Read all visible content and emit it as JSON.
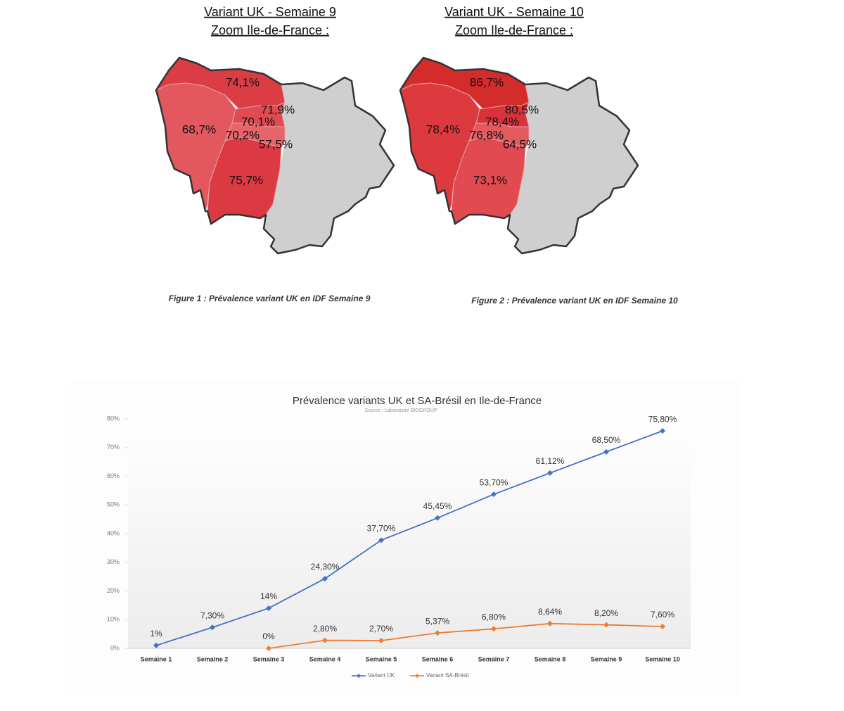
{
  "maps": [
    {
      "title": "Variant UK - Semaine 9",
      "subtitle": "Zoom Ile-de-France :",
      "regions": [
        "74,1%",
        "71,9%",
        "70,1%",
        "68,7%",
        "70,2%",
        "57,5%",
        "75,7%"
      ],
      "caption": "Figure 1 : Prévalence variant UK en IDF Semaine 9"
    },
    {
      "title": "Variant UK - Semaine 10",
      "subtitle": "Zoom Ile-de-France :",
      "regions": [
        "86,7%",
        "80,5%",
        "78,4%",
        "78,4%",
        "76,8%",
        "64,5%",
        "73,1%"
      ],
      "caption": "Figure 2 : Prévalence variant UK en IDF Semaine 10"
    }
  ],
  "chart_data": {
    "type": "line",
    "title": "Prévalence variants UK et SA-Brésil en Ile-de-France",
    "subtitle": "Source : Laboratoire BIOGROUP",
    "categories": [
      "Semaine 1",
      "Semaine 2",
      "Semaine 3",
      "Semaine 4",
      "Semaine 5",
      "Semaine 6",
      "Semaine 7",
      "Semaine 8",
      "Semaine 9",
      "Semaine 10"
    ],
    "series": [
      {
        "name": "Variant UK",
        "color": "#4472c4",
        "values": [
          1,
          7.3,
          14,
          24.3,
          37.7,
          45.45,
          53.7,
          61.12,
          68.5,
          75.8
        ],
        "value_labels": [
          "1%",
          "7,30%",
          "14%",
          "24,30%",
          "37,70%",
          "45,45%",
          "53,70%",
          "61,12%",
          "68,50%",
          "75,80%"
        ]
      },
      {
        "name": "Variant SA-Brésil",
        "color": "#ed7d31",
        "values": [
          null,
          null,
          0,
          2.8,
          2.7,
          5.37,
          6.8,
          8.64,
          8.2,
          7.6
        ],
        "value_labels": [
          null,
          null,
          "0%",
          "2,80%",
          "2,70%",
          "5,37%",
          "6,80%",
          "8,64%",
          "8,20%",
          "7,60%"
        ]
      }
    ],
    "ylim": [
      0,
      80
    ],
    "yticks": [
      {
        "value": 0,
        "label": "0%"
      },
      {
        "value": 10,
        "label": "10%"
      },
      {
        "value": 20,
        "label": "20%"
      },
      {
        "value": 30,
        "label": "30%"
      },
      {
        "value": 40,
        "label": "40%"
      },
      {
        "value": 50,
        "label": "50%"
      },
      {
        "value": 60,
        "label": "60%"
      },
      {
        "value": 70,
        "label": "70%"
      },
      {
        "value": 80,
        "label": "80%"
      }
    ],
    "legend": "bottom"
  }
}
